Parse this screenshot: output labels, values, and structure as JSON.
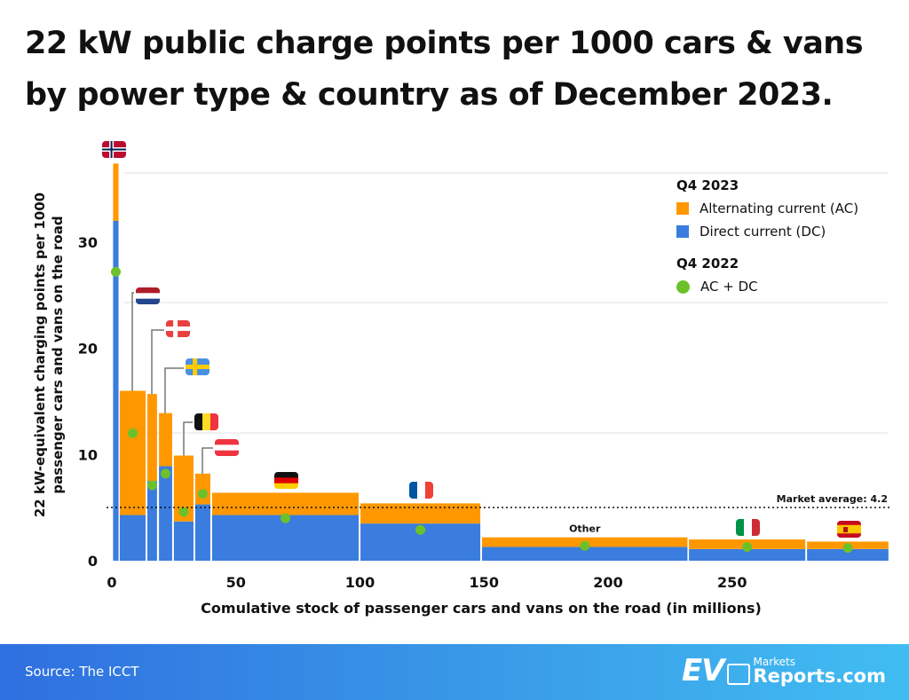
{
  "title": {
    "line1": "22 kW public charge points per 1000 cars & vans",
    "line2": "by power type & country as of December 2023."
  },
  "colors": {
    "ac": "#FF9800",
    "dc": "#3A7DDE",
    "q4_2022": "#6CC12B",
    "gap": "#ffffff"
  },
  "legend": {
    "group1_title": "Q4 2023",
    "ac_label": "Alternating current (AC)",
    "dc_label": "Direct current (DC)",
    "group2_title": "Q4 2022",
    "acdc_label": "AC + DC"
  },
  "chart_data": {
    "type": "bar",
    "subtype": "marimekko-stacked",
    "xlabel": "Comulative stock of passenger cars and vans on the road (in millions)",
    "ylabel": "22 kW-equivalent charging points per 1000 passenger cars and vans on the road",
    "xlim": [
      0,
      313
    ],
    "ylim": [
      0,
      38
    ],
    "xticks": [
      0,
      50,
      100,
      150,
      200,
      250
    ],
    "yticks": [
      0,
      10,
      20,
      30
    ],
    "grid": true,
    "legend_position": "top-right",
    "market_average": {
      "value": 4.2,
      "label": "Market average: 4.2"
    },
    "bars": [
      {
        "country": "Norway",
        "flag": "flag-norway",
        "x0": 0.5,
        "x1": 2.7,
        "dc": 32.0,
        "ac": 5.4,
        "q4_2022": 27.2
      },
      {
        "country": "Netherlands",
        "flag": "flag-netherlands",
        "x0": 3.2,
        "x1": 13.6,
        "dc": 4.3,
        "ac": 11.7,
        "q4_2022": 12.0
      },
      {
        "country": "Denmark",
        "flag": "flag-denmark",
        "x0": 14.3,
        "x1": 18.2,
        "dc": 7.5,
        "ac": 8.2,
        "q4_2022": 7.1
      },
      {
        "country": "Sweden",
        "flag": "flag-sweden",
        "x0": 19.0,
        "x1": 24.3,
        "dc": 8.9,
        "ac": 5.0,
        "q4_2022": 8.2
      },
      {
        "country": "Belgium",
        "flag": "flag-belgium",
        "x0": 25.0,
        "x1": 32.9,
        "dc": 3.7,
        "ac": 6.2,
        "q4_2022": 4.6
      },
      {
        "country": "Austria",
        "flag": "flag-austria",
        "x0": 33.6,
        "x1": 39.7,
        "dc": 5.3,
        "ac": 2.9,
        "q4_2022": 6.3
      },
      {
        "country": "Germany",
        "flag": "flag-germany",
        "x0": 40.4,
        "x1": 99.5,
        "dc": 4.3,
        "ac": 2.1,
        "q4_2022": 4.0
      },
      {
        "country": "France",
        "flag": "flag-france",
        "x0": 100.2,
        "x1": 148.5,
        "dc": 3.5,
        "ac": 1.9,
        "q4_2022": 2.9
      },
      {
        "country": "Other",
        "label": "Other",
        "x0": 149.2,
        "x1": 232.0,
        "dc": 1.3,
        "ac": 0.9,
        "q4_2022": 1.4
      },
      {
        "country": "Italy",
        "flag": "flag-italy",
        "x0": 232.6,
        "x1": 279.5,
        "dc": 1.1,
        "ac": 0.9,
        "q4_2022": 1.3
      },
      {
        "country": "Spain",
        "flag": "flag-spain",
        "x0": 280.2,
        "x1": 313.0,
        "dc": 1.1,
        "ac": 0.7,
        "q4_2022": 1.2
      }
    ]
  },
  "footer": {
    "source": "Source: The ICCT",
    "logo_ev": "EV",
    "logo_markets": "Markets",
    "logo_reports": "Reports.com"
  }
}
